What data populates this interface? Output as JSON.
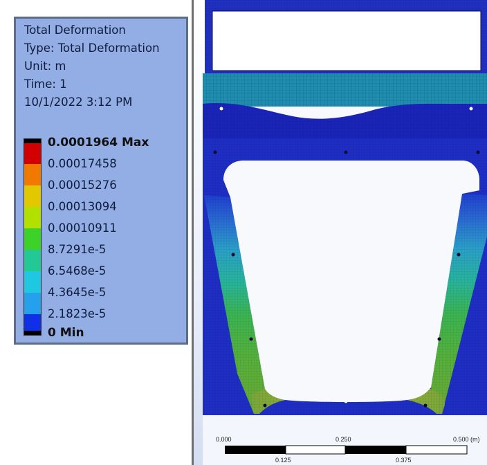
{
  "legend": {
    "title": "Total Deformation",
    "type": "Type: Total Deformation",
    "unit": "Unit: m",
    "time": "Time: 1",
    "date": "10/1/2022 3:12 PM",
    "levels": [
      "0.0001964 Max",
      "0.00017458",
      "0.00015276",
      "0.00013094",
      "0.00010911",
      "8.7291e-5",
      "6.5468e-5",
      "4.3645e-5",
      "2.1823e-5",
      "0 Min"
    ],
    "colors": [
      "#d20000",
      "#f07a00",
      "#e2c800",
      "#b2e000",
      "#3cd22a",
      "#22c896",
      "#1ec8e0",
      "#24a0ec",
      "#1030e8"
    ]
  },
  "scale_bar": {
    "top_labels": [
      "0.000",
      "0.250",
      "0.500 (m)"
    ],
    "bottom_labels": [
      "0.125",
      "0.375"
    ]
  }
}
